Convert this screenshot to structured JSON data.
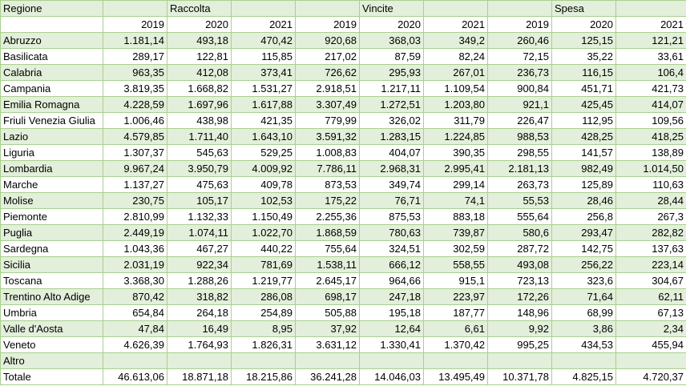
{
  "header": {
    "first_col": "Regione",
    "groups": [
      "Raccolta",
      "Vincite",
      "Spesa"
    ],
    "years": [
      "2019",
      "2020",
      "2021"
    ]
  },
  "rows": [
    {
      "region": "Abruzzo",
      "values": [
        "1.181,14",
        "493,18",
        "470,42",
        "920,68",
        "368,03",
        "349,2",
        "260,46",
        "125,15",
        "121,21"
      ]
    },
    {
      "region": "Basilicata",
      "values": [
        "289,17",
        "122,81",
        "115,85",
        "217,02",
        "87,59",
        "82,24",
        "72,15",
        "35,22",
        "33,61"
      ]
    },
    {
      "region": "Calabria",
      "values": [
        "963,35",
        "412,08",
        "373,41",
        "726,62",
        "295,93",
        "267,01",
        "236,73",
        "116,15",
        "106,4"
      ]
    },
    {
      "region": "Campania",
      "values": [
        "3.819,35",
        "1.668,82",
        "1.531,27",
        "2.918,51",
        "1.217,11",
        "1.109,54",
        "900,84",
        "451,71",
        "421,73"
      ]
    },
    {
      "region": "Emilia Romagna",
      "values": [
        "4.228,59",
        "1.697,96",
        "1.617,88",
        "3.307,49",
        "1.272,51",
        "1.203,80",
        "921,1",
        "425,45",
        "414,07"
      ]
    },
    {
      "region": "Friuli Venezia Giulia",
      "values": [
        "1.006,46",
        "438,98",
        "421,35",
        "779,99",
        "326,02",
        "311,79",
        "226,47",
        "112,95",
        "109,56"
      ]
    },
    {
      "region": "Lazio",
      "values": [
        "4.579,85",
        "1.711,40",
        "1.643,10",
        "3.591,32",
        "1.283,15",
        "1.224,85",
        "988,53",
        "428,25",
        "418,25"
      ]
    },
    {
      "region": "Liguria",
      "values": [
        "1.307,37",
        "545,63",
        "529,25",
        "1.008,83",
        "404,07",
        "390,35",
        "298,55",
        "141,57",
        "138,89"
      ]
    },
    {
      "region": "Lombardia",
      "values": [
        "9.967,24",
        "3.950,79",
        "4.009,92",
        "7.786,11",
        "2.968,31",
        "2.995,41",
        "2.181,13",
        "982,49",
        "1.014,50"
      ]
    },
    {
      "region": "Marche",
      "values": [
        "1.137,27",
        "475,63",
        "409,78",
        "873,53",
        "349,74",
        "299,14",
        "263,73",
        "125,89",
        "110,63"
      ]
    },
    {
      "region": "Molise",
      "values": [
        "230,75",
        "105,17",
        "102,53",
        "175,22",
        "76,71",
        "74,1",
        "55,53",
        "28,46",
        "28,44"
      ]
    },
    {
      "region": "Piemonte",
      "values": [
        "2.810,99",
        "1.132,33",
        "1.150,49",
        "2.255,36",
        "875,53",
        "883,18",
        "555,64",
        "256,8",
        "267,3"
      ]
    },
    {
      "region": "Puglia",
      "values": [
        "2.449,19",
        "1.074,11",
        "1.022,70",
        "1.868,59",
        "780,63",
        "739,87",
        "580,6",
        "293,47",
        "282,82"
      ]
    },
    {
      "region": "Sardegna",
      "values": [
        "1.043,36",
        "467,27",
        "440,22",
        "755,64",
        "324,51",
        "302,59",
        "287,72",
        "142,75",
        "137,63"
      ]
    },
    {
      "region": "Sicilia",
      "values": [
        "2.031,19",
        "922,34",
        "781,69",
        "1.538,11",
        "666,12",
        "558,55",
        "493,08",
        "256,22",
        "223,14"
      ]
    },
    {
      "region": "Toscana",
      "values": [
        "3.368,30",
        "1.288,26",
        "1.219,77",
        "2.645,17",
        "964,66",
        "915,1",
        "723,13",
        "323,6",
        "304,67"
      ]
    },
    {
      "region": "Trentino Alto Adige",
      "values": [
        "870,42",
        "318,82",
        "286,08",
        "698,17",
        "247,18",
        "223,97",
        "172,26",
        "71,64",
        "62,11"
      ]
    },
    {
      "region": "Umbria",
      "values": [
        "654,84",
        "264,18",
        "254,89",
        "505,88",
        "195,18",
        "187,77",
        "148,96",
        "68,99",
        "67,13"
      ]
    },
    {
      "region": "Valle d'Aosta",
      "values": [
        "47,84",
        "16,49",
        "8,95",
        "37,92",
        "12,64",
        "6,61",
        "9,92",
        "3,86",
        "2,34"
      ]
    },
    {
      "region": "Veneto",
      "values": [
        "4.626,39",
        "1.764,93",
        "1.826,31",
        "3.631,12",
        "1.330,41",
        "1.370,42",
        "995,25",
        "434,53",
        "455,94"
      ]
    },
    {
      "region": "Altro",
      "values": [
        "",
        "",
        "",
        "",
        "",
        "",
        "",
        "",
        ""
      ]
    },
    {
      "region": "Totale",
      "values": [
        "46.613,06",
        "18.871,18",
        "18.215,86",
        "36.241,28",
        "14.046,03",
        "13.495,49",
        "10.371,78",
        "4.825,15",
        "4.720,37"
      ]
    }
  ],
  "colors": {
    "band": "#e2efda",
    "border": "#a9d08e"
  }
}
